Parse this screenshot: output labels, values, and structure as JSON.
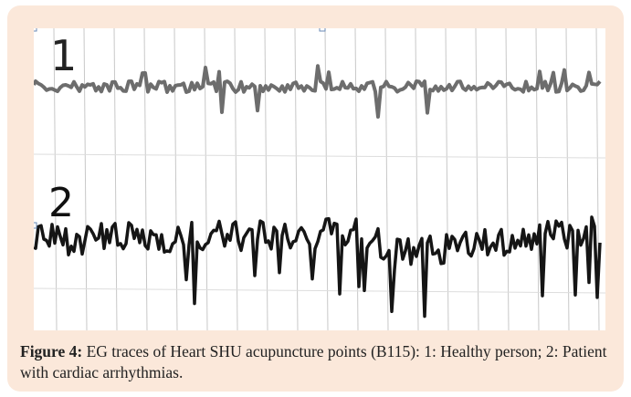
{
  "figure": {
    "trace_labels": [
      "1",
      "2"
    ],
    "caption": {
      "label": "Figure 4:",
      "text": "EG traces of Heart SHU acupuncture points (B115): 1: Healthy person; 2: Patient with cardiac arrhythmias."
    }
  }
}
